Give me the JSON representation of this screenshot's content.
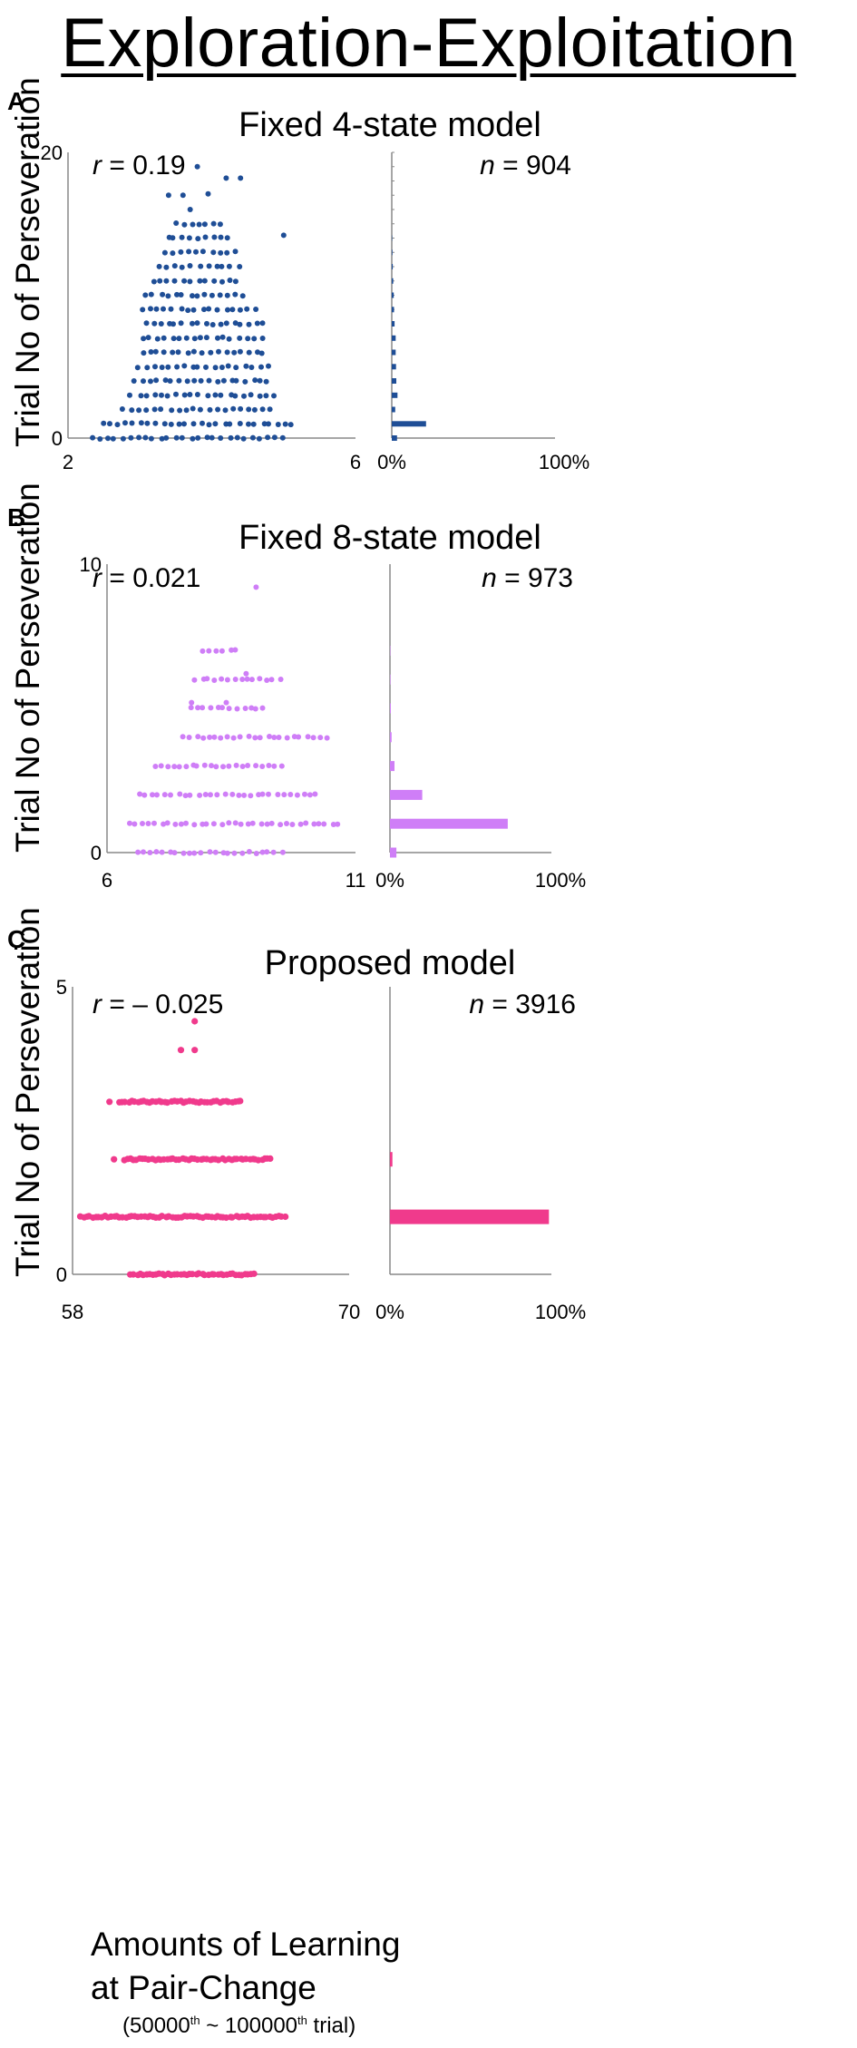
{
  "title": "Exploration-Exploitation",
  "xlabel_line1": "Amounts of Learning",
  "xlabel_line2": "at Pair-Change",
  "xlabel_note": {
    "open": "(50000",
    "sup1": "th",
    "mid": " ~ 100000",
    "sup2": "th",
    "close": " trial)"
  },
  "chart_data": [
    {
      "panel": "A",
      "type": "scatter",
      "title": "Fixed 4-state model",
      "ylabel": "Trial No of Perseveration",
      "color": "#1f4e96",
      "xlim": [
        2,
        6
      ],
      "ylim": [
        0,
        20
      ],
      "x_ticks": [
        "2",
        "6"
      ],
      "y_ticks": [
        "0",
        "20"
      ],
      "r_label": "r",
      "r_value": "= 0.19",
      "n_label": "n",
      "n_value": "= 904",
      "hist_ticks": [
        "0%",
        "100%"
      ],
      "histogram": {
        "y": [
          0,
          1,
          2,
          3,
          4,
          5,
          6,
          7,
          8,
          9,
          10,
          11,
          12,
          13,
          14
        ],
        "percent": [
          3.2,
          21.0,
          2.1,
          3.5,
          2.8,
          2.6,
          2.4,
          2.4,
          1.7,
          1.4,
          1.2,
          0.9,
          0.6,
          0.4,
          0.2
        ]
      },
      "scatter_rows": [
        {
          "y": 0,
          "x": [
            2.3,
            5.05
          ]
        },
        {
          "y": 1,
          "x": [
            2.45,
            5.2
          ]
        },
        {
          "y": 2,
          "x": [
            2.75,
            4.9
          ]
        },
        {
          "y": 3,
          "x": [
            2.85,
            4.95
          ]
        },
        {
          "y": 4,
          "x": [
            2.9,
            4.85
          ]
        },
        {
          "y": 5,
          "x": [
            2.95,
            4.85
          ]
        },
        {
          "y": 6,
          "x": [
            3.0,
            4.8
          ]
        },
        {
          "y": 7,
          "x": [
            3.0,
            4.75
          ]
        },
        {
          "y": 8,
          "x": [
            3.05,
            4.8
          ]
        },
        {
          "y": 9,
          "x": [
            3.0,
            4.7
          ]
        },
        {
          "y": 10,
          "x": [
            3.05,
            4.5
          ]
        },
        {
          "y": 11,
          "x": [
            3.15,
            4.4
          ]
        },
        {
          "y": 12,
          "x": [
            3.25,
            4.45
          ]
        },
        {
          "y": 13,
          "x": [
            3.3,
            4.4
          ]
        },
        {
          "y": 14,
          "x": [
            3.35,
            4.3
          ]
        },
        {
          "y": 15,
          "x": [
            3.5,
            4.2
          ]
        }
      ],
      "scatter_extra": [
        [
          5.0,
          14.2
        ],
        [
          3.4,
          17.0
        ],
        [
          3.6,
          17.0
        ],
        [
          3.95,
          17.1
        ],
        [
          3.7,
          16.0
        ],
        [
          4.2,
          18.2
        ],
        [
          4.4,
          18.2
        ],
        [
          3.8,
          19.0
        ]
      ]
    },
    {
      "panel": "B",
      "type": "scatter",
      "title": "Fixed 8-state model",
      "ylabel": "Trial No of Perseveration",
      "color": "#cf7ef7",
      "xlim": [
        6,
        11
      ],
      "ylim": [
        0,
        10
      ],
      "x_ticks": [
        "6",
        "11"
      ],
      "y_ticks": [
        "0",
        "10"
      ],
      "r_label": "r",
      "r_value": "= 0.021",
      "n_label": "n",
      "n_value": "= 973",
      "hist_ticks": [
        "0%",
        "100%"
      ],
      "histogram": {
        "y": [
          0,
          1,
          2,
          3,
          4,
          5,
          6,
          7
        ],
        "percent": [
          4.0,
          73.0,
          20.0,
          2.8,
          1.0,
          0.5,
          0.3,
          0.2
        ]
      },
      "scatter_rows": [
        {
          "y": 0,
          "x": [
            6.55,
            9.6
          ]
        },
        {
          "y": 1,
          "x": [
            6.4,
            10.75
          ]
        },
        {
          "y": 2,
          "x": [
            6.6,
            10.3
          ]
        },
        {
          "y": 3,
          "x": [
            6.9,
            9.6
          ]
        },
        {
          "y": 4,
          "x": [
            7.5,
            10.5
          ]
        },
        {
          "y": 5,
          "x": [
            7.65,
            9.25
          ]
        },
        {
          "y": 6,
          "x": [
            7.75,
            9.55
          ]
        },
        {
          "y": 7,
          "x": [
            7.9,
            8.7
          ]
        }
      ],
      "scatter_extra": [
        [
          9.0,
          9.2
        ],
        [
          7.7,
          5.2
        ],
        [
          8.4,
          5.2
        ],
        [
          8.8,
          6.2
        ]
      ]
    },
    {
      "panel": "C",
      "type": "scatter",
      "title": "Proposed model",
      "ylabel": "Trial No of Perseveration",
      "color": "#f03a8c",
      "xlim": [
        58,
        70
      ],
      "ylim": [
        0,
        5
      ],
      "x_ticks": [
        "58",
        "70"
      ],
      "y_ticks": [
        "0",
        "5"
      ],
      "r_label": "r",
      "r_value": "= – 0.025",
      "n_label": "n",
      "n_value": "= 3916",
      "hist_ticks": [
        "0%",
        "100%"
      ],
      "histogram": {
        "y": [
          1,
          2
        ],
        "percent": [
          98.5,
          1.5
        ]
      },
      "scatter_rows": [
        {
          "y": 1,
          "x": [
            58.3,
            67.3
          ]
        },
        {
          "y": 0,
          "x": [
            60.5,
            66.0
          ]
        },
        {
          "y": 2,
          "x": [
            60.2,
            66.7
          ]
        },
        {
          "y": 3,
          "x": [
            60.0,
            65.4
          ]
        }
      ],
      "scatter_extra": [
        [
          62.7,
          3.9
        ],
        [
          63.3,
          3.9
        ],
        [
          63.3,
          4.4
        ],
        [
          59.8,
          2.0
        ],
        [
          59.6,
          3.0
        ]
      ]
    }
  ]
}
